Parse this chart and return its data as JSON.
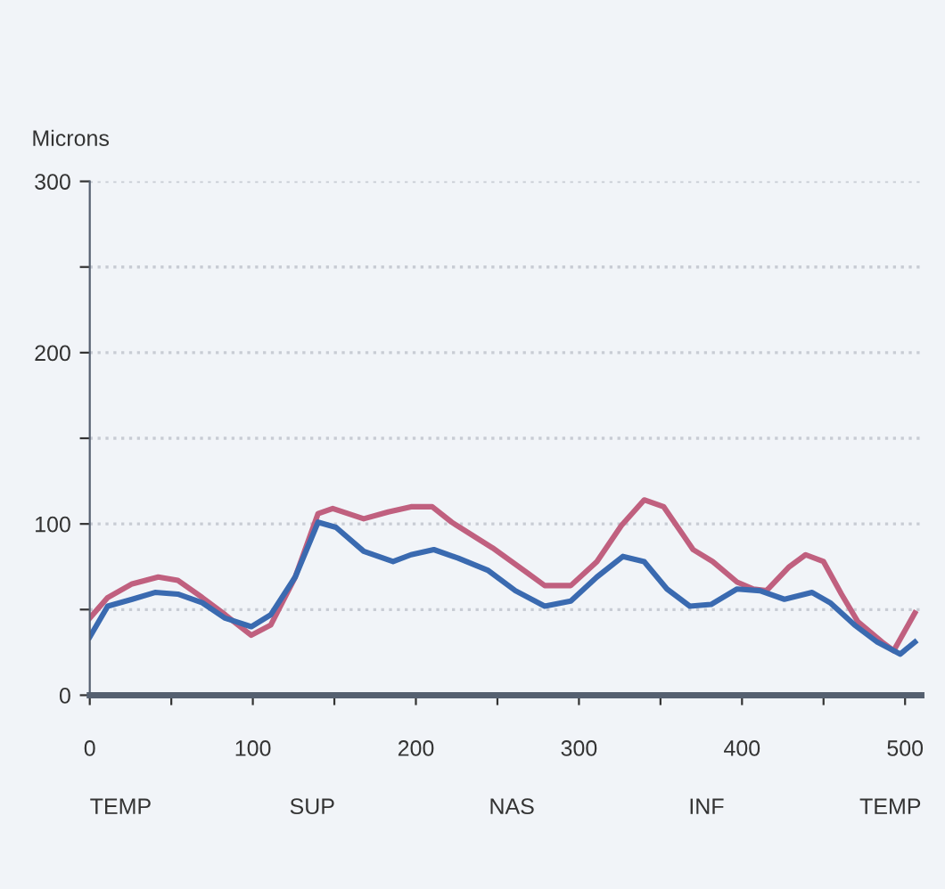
{
  "chart_data": {
    "type": "line",
    "ylabel": "Microns",
    "xlim": [
      0,
      510
    ],
    "ylim": [
      0,
      300
    ],
    "xticks": [
      0,
      {
        "value": 50,
        "label": null
      },
      100,
      {
        "value": 150,
        "label": null
      },
      200,
      {
        "value": 250,
        "label": null
      },
      300,
      {
        "value": 350,
        "label": null
      },
      400,
      {
        "value": 450,
        "label": null
      },
      500
    ],
    "yticks": [
      0,
      {
        "value": 50,
        "label": null
      },
      100,
      {
        "value": 150,
        "label": null
      },
      200,
      {
        "value": 250,
        "label": null
      },
      300
    ],
    "annotations": [
      "TEMP",
      "SUP",
      "NAS",
      "INF",
      "TEMP"
    ],
    "grid": "y",
    "legend": false,
    "marker": "none",
    "line_style": "solid",
    "series": [
      {
        "color": "#c0607f",
        "x": [
          0,
          11,
          26,
          42,
          54,
          69,
          83,
          99,
          111,
          126,
          140,
          149,
          168,
          183,
          197,
          210,
          222,
          247,
          269,
          279,
          295,
          311,
          326,
          340,
          352,
          370,
          382,
          397,
          407,
          415,
          429,
          439,
          450,
          461,
          471,
          486,
          493,
          506
        ],
        "values": [
          45,
          57,
          65,
          69,
          67,
          57,
          47,
          35,
          41,
          69,
          106,
          109,
          103,
          107,
          110,
          110,
          101,
          86,
          71,
          64,
          64,
          78,
          99,
          114,
          110,
          85,
          78,
          66,
          62,
          61,
          75,
          82,
          78,
          59,
          43,
          31,
          26,
          48
        ]
      },
      {
        "color": "#3a6ab0",
        "x": [
          0,
          11,
          26,
          40,
          54,
          69,
          83,
          99,
          111,
          126,
          140,
          151,
          168,
          186,
          197,
          211,
          226,
          244,
          261,
          279,
          295,
          311,
          327,
          340,
          354,
          368,
          381,
          397,
          411,
          426,
          443,
          454,
          469,
          483,
          497,
          506
        ],
        "values": [
          34,
          52,
          56,
          60,
          59,
          54,
          45,
          40,
          47,
          69,
          101,
          98,
          84,
          78,
          82,
          85,
          80,
          73,
          61,
          52,
          55,
          69,
          81,
          78,
          62,
          52,
          53,
          62,
          61,
          56,
          60,
          54,
          41,
          31,
          24,
          31
        ]
      }
    ]
  }
}
